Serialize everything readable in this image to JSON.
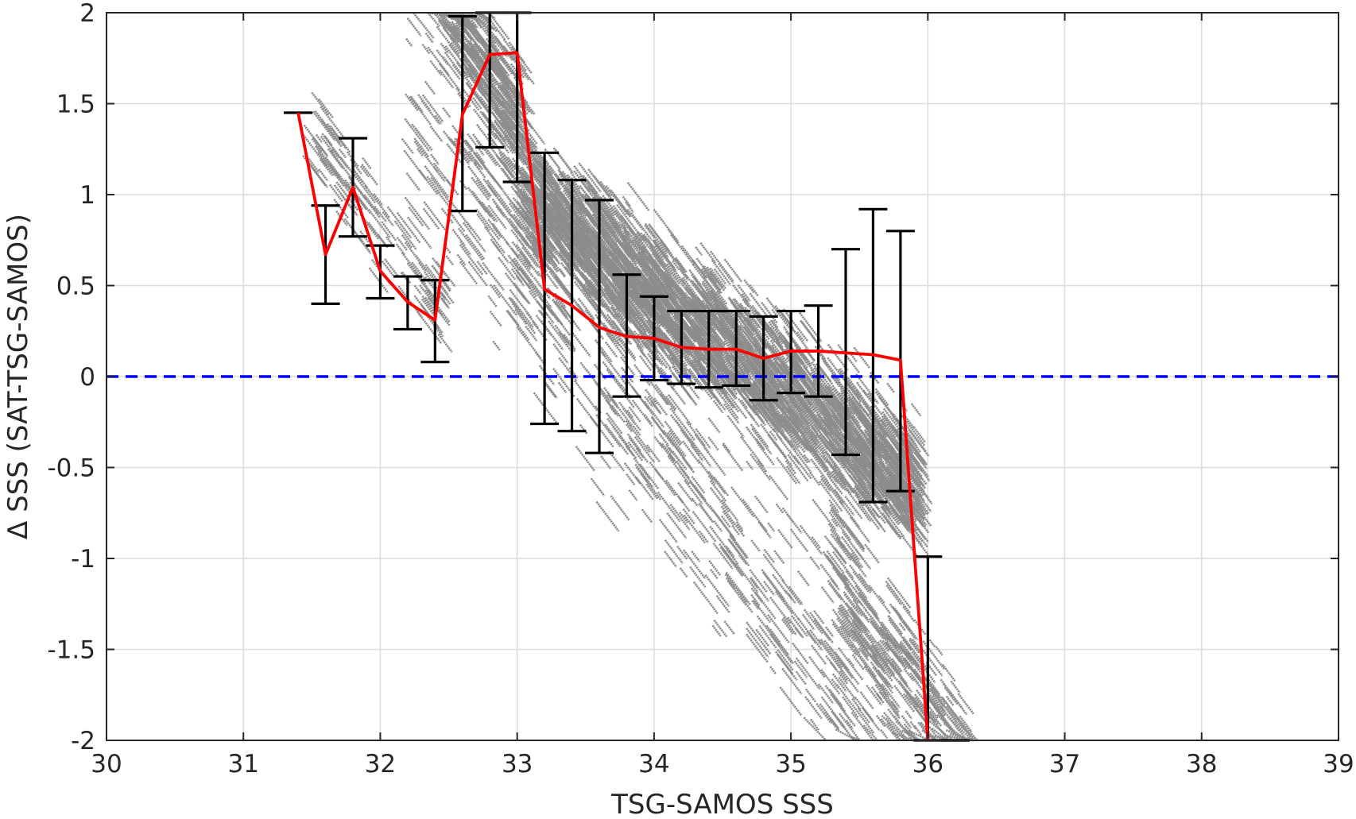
{
  "chart_data": {
    "type": "scatter",
    "title": "",
    "xlabel": "TSG-SAMOS SSS",
    "ylabel": "Δ SSS (SAT-TSG-SAMOS)",
    "xlim": [
      30,
      39
    ],
    "ylim": [
      -2,
      2
    ],
    "x_ticks": [
      "30",
      "31",
      "32",
      "33",
      "34",
      "35",
      "36",
      "37",
      "38",
      "39"
    ],
    "y_ticks": [
      "-2",
      "-1.5",
      "-1",
      "-0.5",
      "0",
      "0.5",
      "1",
      "1.5",
      "2"
    ],
    "grid": true,
    "legend": "none",
    "colors": {
      "scatter": "#8c8c8c",
      "mean_line": "#ff0000",
      "error_bars": "#000000",
      "zero_line": "#0000ff"
    },
    "reference_line": {
      "y": 0,
      "style": "dashed"
    },
    "scatter_bands": [
      {
        "x0": 32.45,
        "x1": 33.05,
        "yc": 1.75,
        "slope": -1.3,
        "spread": 0.35,
        "count": 420
      },
      {
        "x0": 33.05,
        "x1": 35.95,
        "yc": 0.18,
        "slope": -0.55,
        "spread": 0.32,
        "count": 2600
      },
      {
        "x0": 32.2,
        "x1": 36.3,
        "yc": -0.55,
        "slope": -1.0,
        "spread": 0.55,
        "count": 700
      },
      {
        "x0": 31.5,
        "x1": 32.5,
        "yc": 0.85,
        "slope": -0.9,
        "spread": 0.25,
        "count": 120
      },
      {
        "x0": 35.3,
        "x1": 36.3,
        "yc": -1.55,
        "slope": -1.1,
        "spread": 0.35,
        "count": 260
      }
    ],
    "mean_with_error": [
      {
        "x": 31.4,
        "mean": 1.45,
        "lower": 1.45,
        "upper": 1.45
      },
      {
        "x": 31.6,
        "mean": 0.67,
        "lower": 0.4,
        "upper": 0.94
      },
      {
        "x": 31.8,
        "mean": 1.04,
        "lower": 0.77,
        "upper": 1.31
      },
      {
        "x": 32.0,
        "mean": 0.58,
        "lower": 0.43,
        "upper": 0.72
      },
      {
        "x": 32.2,
        "mean": 0.41,
        "lower": 0.26,
        "upper": 0.55
      },
      {
        "x": 32.4,
        "mean": 0.31,
        "lower": 0.08,
        "upper": 0.53
      },
      {
        "x": 32.6,
        "mean": 1.44,
        "lower": 0.91,
        "upper": 1.98
      },
      {
        "x": 32.8,
        "mean": 1.77,
        "lower": 1.26,
        "upper": 2.0
      },
      {
        "x": 33.0,
        "mean": 1.78,
        "lower": 1.07,
        "upper": 2.0
      },
      {
        "x": 33.2,
        "mean": 0.48,
        "lower": -0.26,
        "upper": 1.23
      },
      {
        "x": 33.4,
        "mean": 0.39,
        "lower": -0.3,
        "upper": 1.08
      },
      {
        "x": 33.6,
        "mean": 0.27,
        "lower": -0.42,
        "upper": 0.97
      },
      {
        "x": 33.8,
        "mean": 0.22,
        "lower": -0.11,
        "upper": 0.56
      },
      {
        "x": 34.0,
        "mean": 0.21,
        "lower": -0.02,
        "upper": 0.44
      },
      {
        "x": 34.2,
        "mean": 0.16,
        "lower": -0.04,
        "upper": 0.36
      },
      {
        "x": 34.4,
        "mean": 0.15,
        "lower": -0.06,
        "upper": 0.36
      },
      {
        "x": 34.6,
        "mean": 0.15,
        "lower": -0.05,
        "upper": 0.36
      },
      {
        "x": 34.8,
        "mean": 0.1,
        "lower": -0.13,
        "upper": 0.33
      },
      {
        "x": 35.0,
        "mean": 0.14,
        "lower": -0.09,
        "upper": 0.36
      },
      {
        "x": 35.2,
        "mean": 0.14,
        "lower": -0.11,
        "upper": 0.39
      },
      {
        "x": 35.4,
        "mean": 0.13,
        "lower": -0.43,
        "upper": 0.7
      },
      {
        "x": 35.6,
        "mean": 0.12,
        "lower": -0.69,
        "upper": 0.92
      },
      {
        "x": 35.8,
        "mean": 0.09,
        "lower": -0.63,
        "upper": 0.8
      },
      {
        "x": 36.0,
        "mean": -2.0,
        "lower": -2.0,
        "upper": -0.99
      },
      {
        "x": 36.2,
        "mean": -2.0,
        "lower": -2.0,
        "upper": -2.0
      }
    ]
  }
}
